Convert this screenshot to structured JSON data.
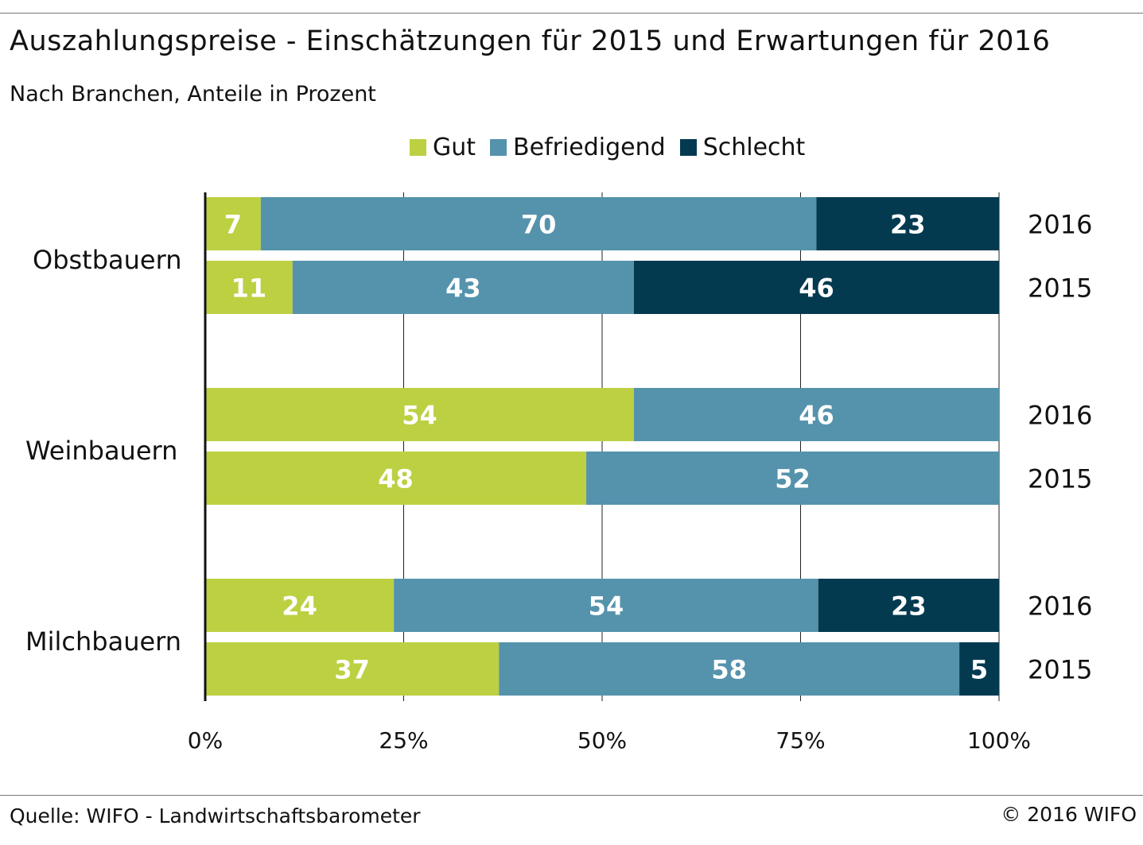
{
  "title": "Auszahlungspreise - Einschätzungen für 2015 und Erwartungen für 2016",
  "subtitle": "Nach Branchen, Anteile in Prozent",
  "source": "Quelle: WIFO - Landwirtschaftsbarometer",
  "copyright": "© 2016 WIFO",
  "chart_data": {
    "type": "bar",
    "orientation": "horizontal",
    "stacked": "percent",
    "title": "Auszahlungspreise - Einschätzungen für 2015 und Erwartungen für 2016",
    "legend_placement": "top",
    "series": [
      {
        "name": "Gut",
        "color": "#bdd042"
      },
      {
        "name": "Befriedigend",
        "color": "#5593ac"
      },
      {
        "name": "Schlecht",
        "color": "#033a50"
      }
    ],
    "groups": [
      {
        "label": "Obstbauern",
        "bars": [
          {
            "year": "2016",
            "values": [
              7,
              70,
              23
            ]
          },
          {
            "year": "2015",
            "values": [
              11,
              43,
              46
            ]
          }
        ]
      },
      {
        "label": "Weinbauern",
        "bars": [
          {
            "year": "2016",
            "values": [
              54,
              46,
              0
            ]
          },
          {
            "year": "2015",
            "values": [
              48,
              52,
              0
            ]
          }
        ]
      },
      {
        "label": "Milchbauern",
        "bars": [
          {
            "year": "2016",
            "values": [
              24,
              54,
              23
            ]
          },
          {
            "year": "2015",
            "values": [
              37,
              58,
              5
            ]
          }
        ]
      }
    ],
    "xlim": [
      0,
      100
    ],
    "x_ticks": [
      "0%",
      "25%",
      "50%",
      "75%",
      "100%"
    ],
    "grid": true
  }
}
